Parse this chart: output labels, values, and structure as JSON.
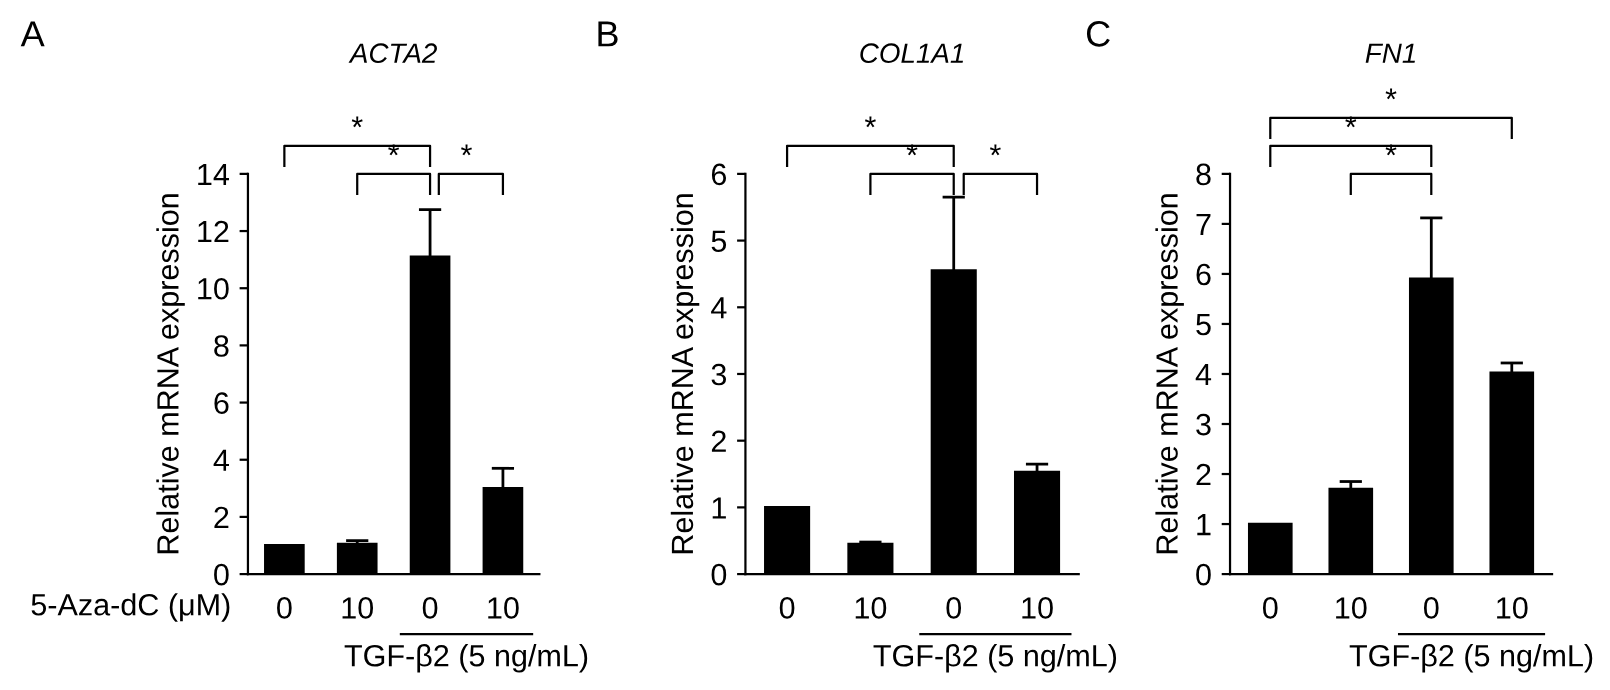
{
  "chart_data": [
    {
      "type": "bar",
      "title": "ACTA2",
      "ylabel": "Relative mRNA expression",
      "categories": [
        "0",
        "10",
        "0",
        "10"
      ],
      "series": [
        {
          "color": "#000000",
          "values": [
            1,
            1.05,
            11.1,
            3.0
          ],
          "errors": [
            null,
            0.12,
            1.65,
            0.7
          ]
        }
      ],
      "ylim": [
        0,
        14
      ],
      "yticks": [
        0,
        2,
        4,
        6,
        8,
        10,
        12,
        14
      ],
      "annotations": [
        "A",
        "5-Aza-dC (μM)",
        "TGF-β2 (5 ng/mL)",
        "*",
        "*",
        "*"
      ]
    },
    {
      "type": "bar",
      "title": "COL1A1",
      "ylabel": "Relative mRNA expression",
      "categories": [
        "0",
        "10",
        "0",
        "10"
      ],
      "series": [
        {
          "color": "#000000",
          "values": [
            1,
            0.45,
            4.55,
            1.53
          ],
          "errors": [
            null,
            0.03,
            1.1,
            0.12
          ]
        }
      ],
      "ylim": [
        0,
        6
      ],
      "yticks": [
        0,
        1,
        2,
        3,
        4,
        5,
        6
      ],
      "annotations": [
        "B",
        "TGF-β2 (5 ng/mL)",
        "*",
        "*",
        "*"
      ]
    },
    {
      "type": "bar",
      "title": "FN1",
      "ylabel": "Relative mRNA expression",
      "categories": [
        "0",
        "10",
        "0",
        "10"
      ],
      "series": [
        {
          "color": "#000000",
          "values": [
            1,
            1.7,
            5.9,
            4.02
          ],
          "errors": [
            null,
            0.15,
            1.22,
            0.2
          ]
        }
      ],
      "ylim": [
        0,
        8
      ],
      "yticks": [
        0,
        1,
        2,
        3,
        4,
        5,
        6,
        7,
        8
      ],
      "annotations": [
        "C",
        "TGF-β2 (5 ng/mL)",
        "*",
        "*",
        "*"
      ]
    }
  ]
}
